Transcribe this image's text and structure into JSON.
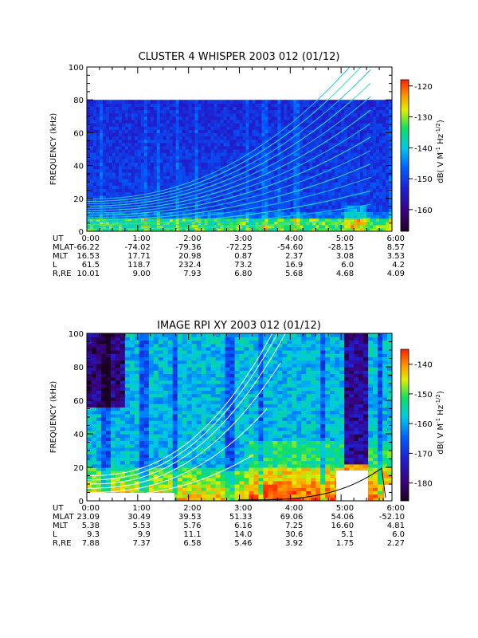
{
  "chart_data": [
    {
      "type": "heatmap",
      "title": "CLUSTER 4 WHISPER 2003 012 (01/12)",
      "ylabel": "FREQUENCY (kHz)",
      "ylim": [
        0,
        100
      ],
      "data_ymax": 80,
      "yticks": [
        "0",
        "20",
        "40",
        "60",
        "80",
        "100"
      ],
      "xlim": [
        "0:00",
        "6:00"
      ],
      "xticks": [
        "0:00",
        "1:00",
        "2:00",
        "3:00",
        "4:00",
        "5:00",
        "6:00"
      ],
      "colorbar": {
        "label": "dB( V M",
        "sup1": "-1",
        "mid": " Hz",
        "sup2": "-1/2",
        "end": ")",
        "range": [
          -167,
          -118
        ],
        "ticks": [
          "-120",
          "-130",
          "-140",
          "-150",
          "-160"
        ],
        "tick_values": [
          -120,
          -130,
          -140,
          -150,
          -160
        ]
      },
      "background_level": -156,
      "emission_lines": "harmonics of plasma/gyro frequency rising toward 5:30",
      "ephemeris": [
        {
          "name": "UT",
          "values": [
            "0:00",
            "1:00",
            "2:00",
            "3:00",
            "4:00",
            "5:00",
            "6:00"
          ]
        },
        {
          "name": "MLAT",
          "values": [
            "-66.22",
            "-74.02",
            "-79.36",
            "-72.25",
            "-54.60",
            "-28.15",
            "8.57"
          ]
        },
        {
          "name": "MLT",
          "values": [
            "16.53",
            "17.71",
            "20.98",
            "0.87",
            "2.37",
            "3.08",
            "3.53"
          ]
        },
        {
          "name": "L",
          "values": [
            "61.5",
            "118.7",
            "232.4",
            "73.2",
            "16.9",
            "6.0",
            "4.2"
          ]
        },
        {
          "name": "R,RE",
          "values": [
            "10.01",
            "9.00",
            "7.93",
            "6.80",
            "5.68",
            "4.68",
            "4.09"
          ]
        }
      ]
    },
    {
      "type": "heatmap",
      "title": "IMAGE RPI XY 2003 012 (01/12)",
      "ylabel": "FREQUENCY (kHz)",
      "ylim": [
        0,
        100
      ],
      "yticks": [
        "0",
        "20",
        "40",
        "60",
        "80",
        "100"
      ],
      "xlim": [
        "0:00",
        "6:00"
      ],
      "xticks": [
        "0:00",
        "1:00",
        "2:00",
        "3:00",
        "4:00",
        "5:00",
        "6:00"
      ],
      "colorbar": {
        "label": "dB( V M",
        "sup1": "-1",
        "mid": " Hz",
        "sup2": "-1/2",
        "end": ")",
        "range": [
          -186,
          -135
        ],
        "ticks": [
          "-140",
          "-150",
          "-160",
          "-170",
          "-180"
        ],
        "tick_values": [
          -140,
          -150,
          -160,
          -170,
          -180
        ]
      },
      "overlay_curves": "white harmonic curves and black lower-hybrid curve",
      "ephemeris": [
        {
          "name": "UT",
          "values": [
            "0:00",
            "1:00",
            "2:00",
            "3:00",
            "4:00",
            "5:00",
            "6:00"
          ]
        },
        {
          "name": "MLAT",
          "values": [
            "23.09",
            "30.49",
            "39.53",
            "51.33",
            "69.06",
            "54.06",
            "-52.10"
          ]
        },
        {
          "name": "MLT",
          "values": [
            "5.38",
            "5.53",
            "5.76",
            "6.16",
            "7.25",
            "16.60",
            "4.81"
          ]
        },
        {
          "name": "L",
          "values": [
            "9.3",
            "9.9",
            "11.1",
            "14.0",
            "30.6",
            "5.1",
            "6.0"
          ]
        },
        {
          "name": "R,RE",
          "values": [
            "7.88",
            "7.37",
            "6.58",
            "5.46",
            "3.92",
            "1.75",
            "2.27"
          ]
        }
      ]
    }
  ]
}
